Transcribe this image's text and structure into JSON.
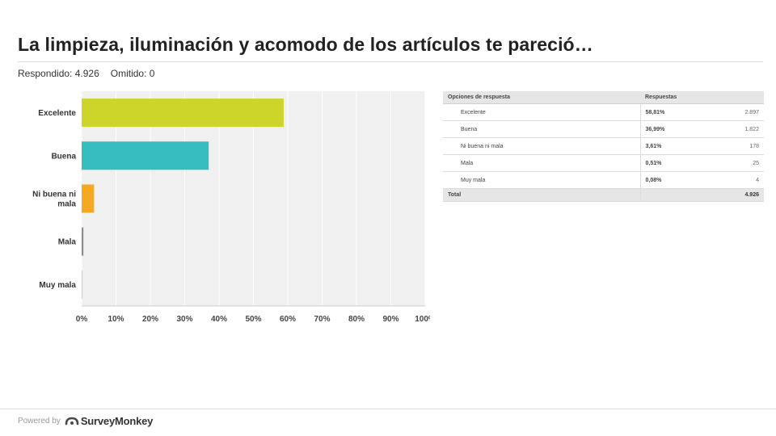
{
  "title": "La limpieza, iluminación y acomodo de los artículos te pareció…",
  "meta": {
    "answered": "Respondido: 4.926",
    "skipped": "Omitido: 0"
  },
  "chart_data": {
    "type": "bar",
    "orientation": "horizontal",
    "categories": [
      "Excelente",
      "Buena",
      "Ni buena ni mala",
      "Mala",
      "Muy mala"
    ],
    "values": [
      58.81,
      36.99,
      3.61,
      0.51,
      0.08
    ],
    "xlim": [
      0,
      100
    ],
    "x_ticks": [
      "0%",
      "10%",
      "20%",
      "30%",
      "40%",
      "50%",
      "60%",
      "70%",
      "80%",
      "90%",
      "100%"
    ],
    "grid": "vertical",
    "colors": [
      "#cdd52a",
      "#35bdbf",
      "#f4a921",
      "#8c8c8c",
      "#8c8c8c"
    ]
  },
  "table": {
    "headers": [
      "Opciones de respuesta",
      "Respuestas"
    ],
    "rows": [
      {
        "label": "Excelente",
        "pct": "58,81%",
        "count": "2.897"
      },
      {
        "label": "Buena",
        "pct": "36,99%",
        "count": "1.822"
      },
      {
        "label": "Ni buena ni mala",
        "pct": "3,61%",
        "count": "178"
      },
      {
        "label": "Mala",
        "pct": "0,51%",
        "count": "25"
      },
      {
        "label": "Muy mala",
        "pct": "0,08%",
        "count": "4"
      }
    ],
    "total_label": "Total",
    "total_count": "4.926"
  },
  "footer": {
    "powered_by": "Powered by",
    "brand": "SurveyMonkey",
    "brand_icon": "surveymonkey-logo-icon"
  }
}
